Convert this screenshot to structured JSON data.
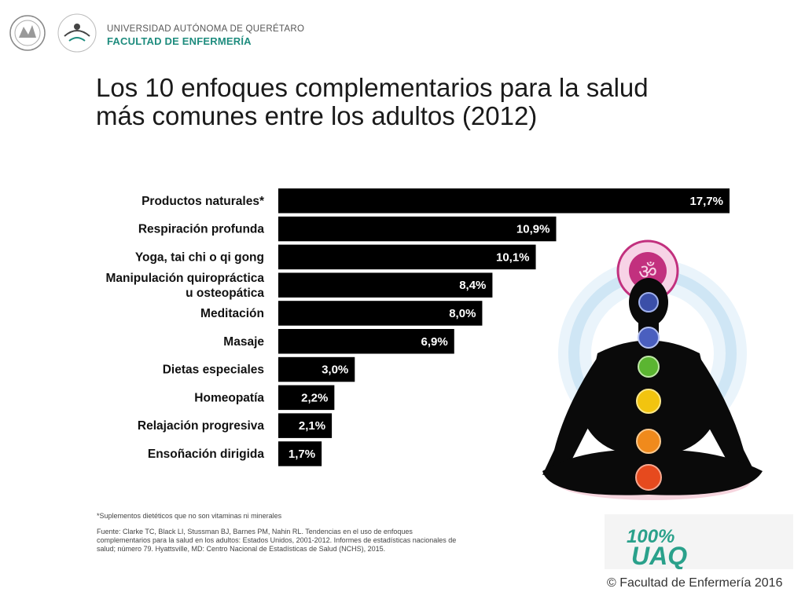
{
  "header": {
    "university": "UNIVERSIDAD AUTÓNOMA DE QUERÉTARO",
    "faculty": "FACULTAD DE ENFERMERÍA"
  },
  "title_line1": "Los 10 enfoques complementarios para la salud",
  "title_line2": "más comunes entre los adultos (2012)",
  "chart_data": {
    "type": "bar",
    "orientation": "horizontal",
    "categories": [
      [
        "Productos naturales*"
      ],
      [
        "Respiración profunda"
      ],
      [
        "Yoga, tai chi o qi gong"
      ],
      [
        "Manipulación quiropráctica",
        "u osteopática"
      ],
      [
        "Meditación"
      ],
      [
        "Masaje"
      ],
      [
        "Dietas especiales"
      ],
      [
        "Homeopatía"
      ],
      [
        "Relajación progresiva"
      ],
      [
        "Ensoñación dirigida"
      ]
    ],
    "values": [
      17.7,
      10.9,
      10.1,
      8.4,
      8.0,
      6.9,
      3.0,
      2.2,
      2.1,
      1.7
    ],
    "value_labels": [
      "17,7%",
      "10,9%",
      "10,1%",
      "8,4%",
      "8,0%",
      "6,9%",
      "3,0%",
      "2,2%",
      "2,1%",
      "1,7%"
    ],
    "bar_color": "#000000",
    "label_color": "#ffffff",
    "grid": false,
    "legend": "none"
  },
  "footnote": "*Suplementos dietéticos que no son vitaminas ni minerales",
  "source": "Fuente: Clarke TC, Black LI, Stussman BJ, Barnes PM, Nahin RL. Tendencias en el uso de enfoques complementarios para la salud en los adultos: Estados Unidos, 2001-2012. Informes de estadísticas nacionales de salud; número 79. Hyattsville, MD: Centro Nacional de Estadísticas de Salud (NCHS), 2015.",
  "uaq_logo_text": "100% UAQ",
  "copyright": "© Facultad de Enfermería 2016",
  "colors": {
    "faculty_teal": "#1e8c7e",
    "logo_green": "#2aa18b",
    "chakra": [
      "#c2307e",
      "#3b4fa8",
      "#4a5fbf",
      "#5bb531",
      "#f2c40f",
      "#f08a1c",
      "#e64a1e"
    ]
  }
}
